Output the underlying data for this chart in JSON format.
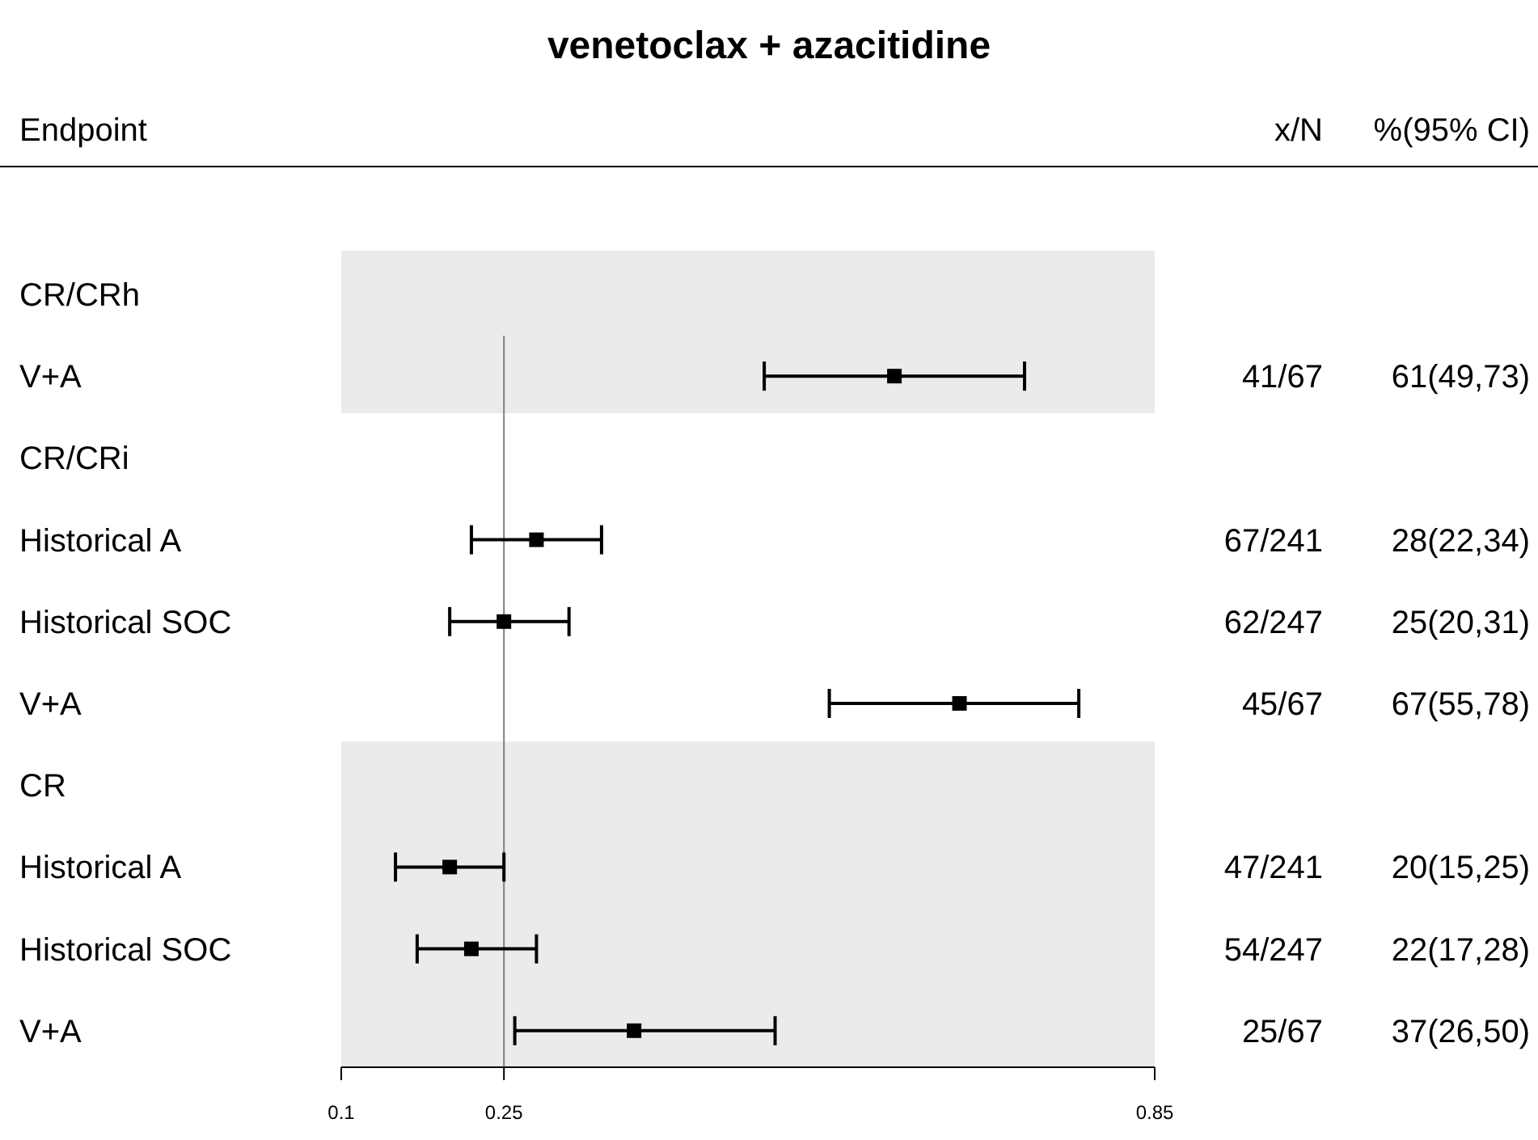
{
  "chart_data": {
    "type": "scatter",
    "orientation": "horizontal",
    "title": "venetoclax + azacitidine",
    "ylabel": "Endpoint",
    "categories": [
      "CR/CRh",
      "V+A",
      "CR/CRi",
      "Historical A",
      "Historical SOC",
      "V+A",
      "CR",
      "Historical A",
      "Historical SOC",
      "V+A"
    ],
    "values": [
      null,
      0.61,
      null,
      0.28,
      0.25,
      0.67,
      null,
      0.2,
      0.22,
      0.37
    ],
    "errors": [
      null,
      [
        0.49,
        0.73
      ],
      null,
      [
        0.22,
        0.34
      ],
      [
        0.2,
        0.31
      ],
      [
        0.55,
        0.78
      ],
      null,
      [
        0.15,
        0.25
      ],
      [
        0.17,
        0.28
      ],
      [
        0.26,
        0.5
      ]
    ],
    "value_labels": [
      null,
      "61(49,73)",
      null,
      "28(22,34)",
      "25(20,31)",
      "67(55,78)",
      null,
      "20(15,25)",
      "22(17,28)",
      "37(26,50)"
    ],
    "color": "#000000",
    "marker": "square",
    "xlim": [
      0.1,
      0.85
    ],
    "xticks": [
      0.1,
      0.25,
      0.85
    ],
    "ref_lines": [
      {
        "axis": "x",
        "value": 0.25,
        "color": "#808080"
      }
    ],
    "bands": [
      {
        "axis": "y",
        "from": "CR/CRh",
        "to": "V+A",
        "color": "#ebebeb"
      }
    ],
    "annotations": [
      "x/N",
      "%(95% CI)",
      "41/67",
      "67/241",
      "62/247",
      "45/67",
      "47/241",
      "54/247",
      "25/67"
    ]
  }
}
